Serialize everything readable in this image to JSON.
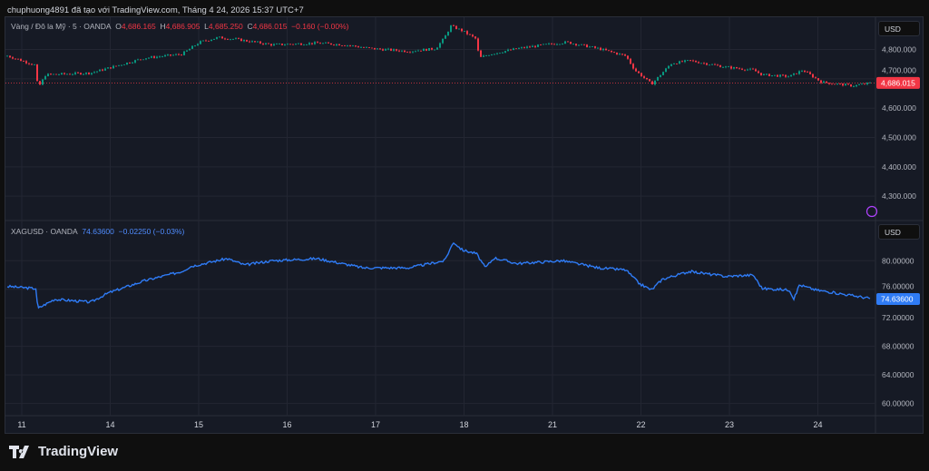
{
  "caption": "chuphuong4891 đã tạo với TradingView.com, Tháng 4 24, 2026 15:37 UTC+7",
  "brand": "TradingView",
  "colors": {
    "up": "#089981",
    "down": "#f23645",
    "silver": "#2f7bf5",
    "grid": "#232632"
  },
  "chart_data": [
    {
      "type": "candlestick",
      "title": "Vàng / Đô la Mỹ · 5 · OANDA",
      "ohlc": {
        "o_label": "O",
        "o": "4,686.165",
        "h_label": "H",
        "h": "4,686.905",
        "l_label": "L",
        "l": "4,685.250",
        "c_label": "C",
        "c": "4,686.015",
        "change": "−0.160 (−0.00%)"
      },
      "last_price": 4686.015,
      "last_price_label": "4,686.015",
      "currency": "USD",
      "ylim": [
        4220,
        4910
      ],
      "yticks": [
        {
          "v": 4800,
          "label": "4,800.000"
        },
        {
          "v": 4700,
          "label": "4,700.000"
        },
        {
          "v": 4600,
          "label": "4,600.000"
        },
        {
          "v": 4500,
          "label": "4,500.000"
        },
        {
          "v": 4400,
          "label": "4,400.000"
        },
        {
          "v": 4300,
          "label": "4,300.000"
        }
      ],
      "path": [
        [
          -0.16,
          4778
        ],
        [
          0.16,
          4746
        ],
        [
          0.18,
          4666
        ],
        [
          0.27,
          4714
        ],
        [
          0.78,
          4720
        ],
        [
          1.09,
          4746
        ],
        [
          1.39,
          4771
        ],
        [
          1.81,
          4784
        ],
        [
          2.01,
          4825
        ],
        [
          2.22,
          4841
        ],
        [
          2.42,
          4835
        ],
        [
          2.83,
          4816
        ],
        [
          3.34,
          4822
        ],
        [
          3.65,
          4816
        ],
        [
          3.96,
          4803
        ],
        [
          4.37,
          4794
        ],
        [
          4.68,
          4803
        ],
        [
          4.78,
          4841
        ],
        [
          4.85,
          4880
        ],
        [
          4.98,
          4864
        ],
        [
          5.14,
          4835
        ],
        [
          5.17,
          4771
        ],
        [
          5.29,
          4784
        ],
        [
          5.6,
          4803
        ],
        [
          5.91,
          4816
        ],
        [
          6.16,
          4825
        ],
        [
          6.52,
          4803
        ],
        [
          6.83,
          4778
        ],
        [
          6.93,
          4730
        ],
        [
          7.12,
          4682
        ],
        [
          7.34,
          4752
        ],
        [
          7.55,
          4762
        ],
        [
          7.96,
          4740
        ],
        [
          8.27,
          4730
        ],
        [
          8.37,
          4714
        ],
        [
          8.68,
          4708
        ],
        [
          8.83,
          4730
        ],
        [
          9.04,
          4689
        ],
        [
          9.4,
          4676
        ],
        [
          9.6,
          4686
        ]
      ]
    },
    {
      "type": "line",
      "title": "XAGUSD · OANDA",
      "value": "74.63600",
      "change": "−0.02250 (−0.03%)",
      "last_price": 74.636,
      "last_price_label": "74.63600",
      "currency": "USD",
      "ylim": [
        58.3,
        85.5
      ],
      "yticks": [
        {
          "v": 80,
          "label": "80.00000"
        },
        {
          "v": 76,
          "label": "76.00000"
        },
        {
          "v": 72,
          "label": "72.00000"
        },
        {
          "v": 68,
          "label": "68.00000"
        },
        {
          "v": 64,
          "label": "64.00000"
        },
        {
          "v": 60,
          "label": "60.00000"
        }
      ],
      "path": [
        [
          -0.16,
          76.4
        ],
        [
          0.16,
          76.1
        ],
        [
          0.18,
          73.3
        ],
        [
          0.37,
          74.6
        ],
        [
          0.78,
          74.2
        ],
        [
          0.98,
          75.5
        ],
        [
          1.39,
          77.2
        ],
        [
          1.81,
          78.5
        ],
        [
          1.91,
          79.2
        ],
        [
          2.32,
          80.3
        ],
        [
          2.52,
          79.4
        ],
        [
          2.83,
          80
        ],
        [
          3.34,
          80.3
        ],
        [
          3.86,
          79
        ],
        [
          4.37,
          79
        ],
        [
          4.78,
          80
        ],
        [
          4.88,
          82.6
        ],
        [
          4.98,
          81.5
        ],
        [
          5.14,
          81
        ],
        [
          5.24,
          79
        ],
        [
          5.34,
          80.4
        ],
        [
          5.6,
          79.6
        ],
        [
          6.11,
          80
        ],
        [
          6.52,
          79
        ],
        [
          6.83,
          78.7
        ],
        [
          6.98,
          76.8
        ],
        [
          7.12,
          75.9
        ],
        [
          7.24,
          77.4
        ],
        [
          7.55,
          78.5
        ],
        [
          7.96,
          77.8
        ],
        [
          8.27,
          78
        ],
        [
          8.37,
          76.1
        ],
        [
          8.68,
          75.9
        ],
        [
          8.73,
          74.6
        ],
        [
          8.79,
          76.6
        ],
        [
          8.98,
          75.9
        ],
        [
          9.4,
          75.1
        ],
        [
          9.6,
          74.7
        ]
      ]
    }
  ],
  "xaxis": {
    "ticks": [
      {
        "t": 0,
        "label": "11"
      },
      {
        "t": 1,
        "label": "14"
      },
      {
        "t": 2,
        "label": "15"
      },
      {
        "t": 3,
        "label": "16"
      },
      {
        "t": 4,
        "label": "17"
      },
      {
        "t": 5,
        "label": "18"
      },
      {
        "t": 6,
        "label": "21"
      },
      {
        "t": 7,
        "label": "22"
      },
      {
        "t": 8,
        "label": "23"
      },
      {
        "t": 9,
        "label": "24"
      }
    ]
  }
}
